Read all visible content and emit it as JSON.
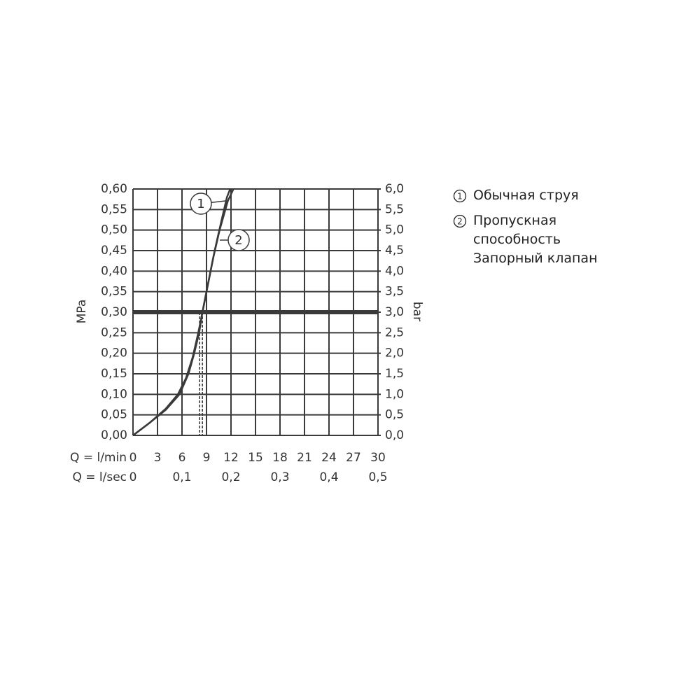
{
  "chart_data": {
    "type": "line",
    "ylabel": "MPa",
    "y2label": "bar",
    "xlabel": "Q = l/min",
    "x2label": "Q = l/sec",
    "xlim": [
      0,
      30
    ],
    "xticks": [
      0,
      3,
      6,
      9,
      12,
      15,
      18,
      21,
      24,
      27,
      30
    ],
    "x2lim": [
      0,
      0.5
    ],
    "x2ticks": [
      0,
      {
        "value": 0.1,
        "label": "0,1"
      },
      {
        "value": 0.2,
        "label": "0,2"
      },
      {
        "value": 0.3,
        "label": "0,3"
      },
      {
        "value": 0.4,
        "label": "0,4"
      },
      {
        "value": 0.5,
        "label": "0,5"
      }
    ],
    "ylim": [
      0,
      0.6
    ],
    "yticks": [
      {
        "value": 0,
        "label": "0,00"
      },
      {
        "value": 0.05,
        "label": "0,05"
      },
      {
        "value": 0.1,
        "label": "0,10"
      },
      {
        "value": 0.15,
        "label": "0,15"
      },
      {
        "value": 0.2,
        "label": "0,20"
      },
      {
        "value": 0.25,
        "label": "0,25"
      },
      {
        "value": 0.3,
        "label": "0,30"
      },
      {
        "value": 0.35,
        "label": "0,35"
      },
      {
        "value": 0.4,
        "label": "0,40"
      },
      {
        "value": 0.45,
        "label": "0,45"
      },
      {
        "value": 0.5,
        "label": "0,50"
      },
      {
        "value": 0.55,
        "label": "0,55"
      },
      {
        "value": 0.6,
        "label": "0,60"
      }
    ],
    "y2lim": [
      0,
      6
    ],
    "y2ticks": [
      {
        "value": 0,
        "label": "0,0"
      },
      {
        "value": 0.5,
        "label": "0,5"
      },
      {
        "value": 1,
        "label": "1,0"
      },
      {
        "value": 1.5,
        "label": "1,5"
      },
      {
        "value": 2,
        "label": "2,0"
      },
      {
        "value": 2.5,
        "label": "2,5"
      },
      {
        "value": 3,
        "label": "3,0"
      },
      {
        "value": 3.5,
        "label": "3,5"
      },
      {
        "value": 4,
        "label": "4,0"
      },
      {
        "value": 4.5,
        "label": "4,5"
      },
      {
        "value": 5,
        "label": "5,0"
      },
      {
        "value": 5.5,
        "label": "5,5"
      },
      {
        "value": 6,
        "label": "6,0"
      }
    ],
    "grid": true,
    "color": "#3a3a3a",
    "reference_y": 0.3,
    "reference_x": [
      8.15,
      8.5
    ],
    "series": [
      {
        "label": "1",
        "name": "Обычная струя",
        "color": "#3a3a3a",
        "x": [
          0,
          2,
          4,
          5.5,
          6.5,
          7.3,
          8,
          8.5,
          9.2,
          10,
          10.8,
          11.5,
          11.9
        ],
        "y": [
          0,
          0.03,
          0.065,
          0.1,
          0.14,
          0.19,
          0.25,
          0.3,
          0.37,
          0.45,
          0.52,
          0.58,
          0.6
        ]
      },
      {
        "label": "2",
        "name": "Пропускная способность Запорный клапан",
        "color": "#3a3a3a",
        "x": [
          0,
          2,
          4,
          5.7,
          6.8,
          7.5,
          8.1,
          8.5,
          9.1,
          9.8,
          10.6,
          11.6,
          12.3
        ],
        "y": [
          0,
          0.03,
          0.062,
          0.1,
          0.15,
          0.2,
          0.25,
          0.3,
          0.36,
          0.43,
          0.5,
          0.57,
          0.6
        ]
      }
    ]
  }
}
